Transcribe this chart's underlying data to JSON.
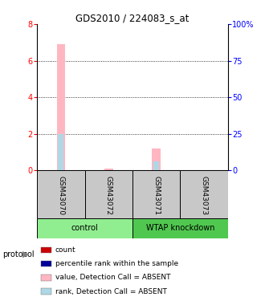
{
  "title": "GDS2010 / 224083_s_at",
  "samples": [
    "GSM43070",
    "GSM43072",
    "GSM43071",
    "GSM43073"
  ],
  "bar_data": {
    "GSM43070": {
      "value_absent": 6.9,
      "rank_absent": 25.0,
      "count": 0,
      "rank": 0
    },
    "GSM43072": {
      "value_absent": 0.08,
      "rank_absent": 0.0,
      "count": 0,
      "rank": 0
    },
    "GSM43071": {
      "value_absent": 1.2,
      "rank_absent": 6.0,
      "count": 0,
      "rank": 0
    },
    "GSM43073": {
      "value_absent": 0.0,
      "rank_absent": 0.0,
      "count": 0,
      "rank": 0
    }
  },
  "ylim_left": [
    0,
    8
  ],
  "ylim_right": [
    0,
    100
  ],
  "yticks_left": [
    0,
    2,
    4,
    6,
    8
  ],
  "yticks_right": [
    0,
    25,
    50,
    75,
    100
  ],
  "yticklabels_right": [
    "0",
    "25",
    "50",
    "75",
    "100%"
  ],
  "color_value_absent": "#FFB6C1",
  "color_rank_absent": "#ADD8E6",
  "color_count": "#CC0000",
  "color_rank": "#000099",
  "grid_color": "#000000",
  "sample_panel_color": "#C8C8C8",
  "group_color_control": "#90EE90",
  "group_color_wtap": "#50C850",
  "legend_items": [
    {
      "color": "#CC0000",
      "label": "count"
    },
    {
      "color": "#000099",
      "label": "percentile rank within the sample"
    },
    {
      "color": "#FFB6C1",
      "label": "value, Detection Call = ABSENT"
    },
    {
      "color": "#ADD8E6",
      "label": "rank, Detection Call = ABSENT"
    }
  ]
}
